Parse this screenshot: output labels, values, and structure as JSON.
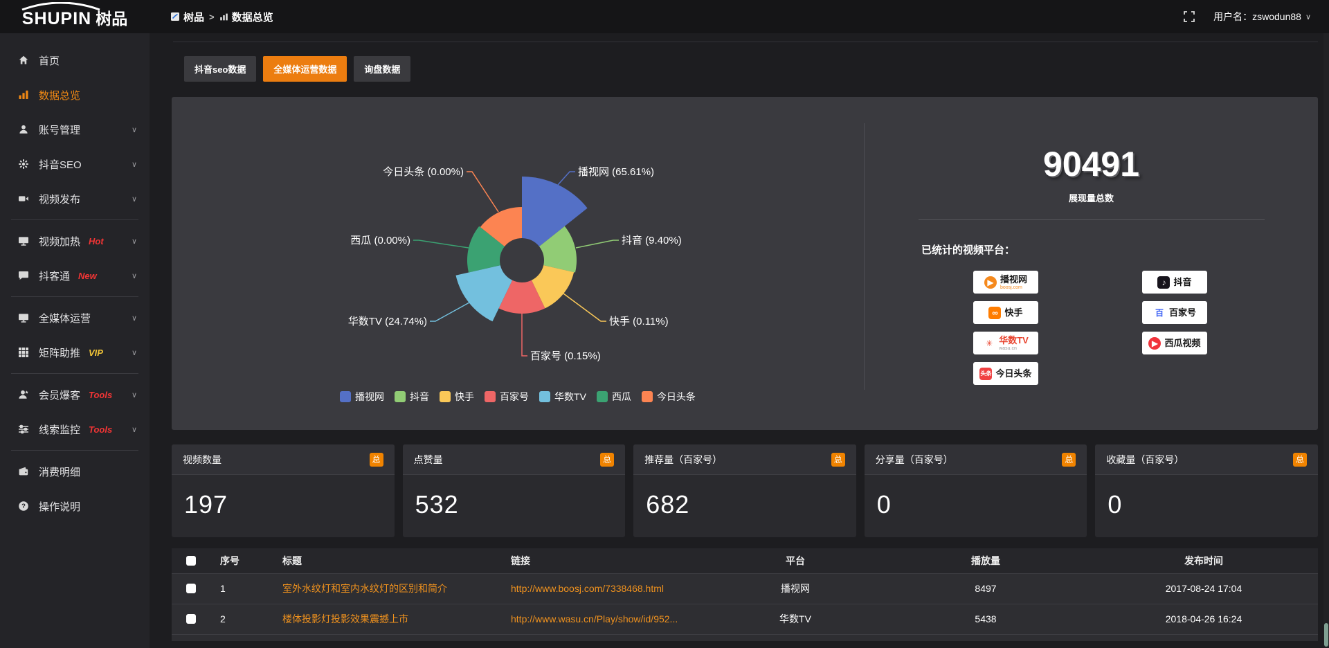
{
  "topbar": {
    "logo": {
      "latin": "SHUPIN",
      "cjk": "树品"
    },
    "breadcrumb": {
      "home": "树品",
      "sep": ">",
      "current": "数据总览"
    },
    "user_label": "用户名：zswodun88",
    "user_chevron": "∨"
  },
  "sidebar": {
    "items": [
      {
        "label": "首页",
        "icon": "home"
      },
      {
        "label": "数据总览",
        "icon": "chart-bar",
        "active": true
      },
      {
        "label": "账号管理",
        "icon": "user",
        "chevron": true
      },
      {
        "label": "抖音SEO",
        "icon": "gear",
        "chevron": true
      },
      {
        "label": "视频发布",
        "icon": "video",
        "chevron": true
      },
      {
        "divider": true
      },
      {
        "label": "视频加热",
        "icon": "monitor-play",
        "tag": "Hot",
        "tag_color": "#f23535",
        "chevron": true
      },
      {
        "label": "抖客通",
        "icon": "chat",
        "tag": "New",
        "tag_color": "#f23535",
        "chevron": true
      },
      {
        "divider": true
      },
      {
        "label": "全媒体运营",
        "icon": "monitor",
        "chevron": true
      },
      {
        "label": "矩阵助推",
        "icon": "grid",
        "tag": "VIP",
        "tag_color": "#f2c537",
        "chevron": true
      },
      {
        "divider": true
      },
      {
        "label": "会员爆客",
        "icon": "user-star",
        "tag": "Tools",
        "tag_color": "#f23535",
        "chevron": true
      },
      {
        "label": "线索监控",
        "icon": "sliders",
        "tag": "Tools",
        "tag_color": "#f23535",
        "chevron": true
      },
      {
        "divider": true
      },
      {
        "label": "消费明细",
        "icon": "wallet"
      },
      {
        "label": "操作说明",
        "icon": "question"
      }
    ]
  },
  "tabs": [
    {
      "label": "抖音seo数据",
      "active": false
    },
    {
      "label": "全媒体运营数据",
      "active": true
    },
    {
      "label": "询盘数据",
      "active": false
    }
  ],
  "chart_data": {
    "type": "pie",
    "subtype": "nightingale-rose",
    "title": "",
    "legend_position": "bottom",
    "label_format": "{name} ({percent}%)",
    "series": [
      {
        "name": "播视网",
        "percent": 65.61,
        "color": "#5470c6"
      },
      {
        "name": "抖音",
        "percent": 9.4,
        "color": "#91cc75"
      },
      {
        "name": "快手",
        "percent": 0.11,
        "color": "#fac858"
      },
      {
        "name": "百家号",
        "percent": 0.15,
        "color": "#ee6666"
      },
      {
        "name": "华数TV",
        "percent": 24.74,
        "color": "#73c0de"
      },
      {
        "name": "西瓜",
        "percent": 0.0,
        "color": "#3ba272"
      },
      {
        "name": "今日头条",
        "percent": 0.0,
        "color": "#fc8452"
      }
    ]
  },
  "summary": {
    "total_value": "90491",
    "total_label": "展现量总数",
    "platforms_label": "已统计的视频平台：",
    "platform_columns": [
      [
        {
          "label": "播视网",
          "sub": "boosj.com",
          "icon_text": "▶",
          "icon_bg": "#f5891d",
          "icon_color": "#ffffff",
          "round": true,
          "label_color": "#1a1a1a",
          "sub_color": "#f5891d"
        },
        {
          "label": "快手",
          "sub": "",
          "icon_text": "∞",
          "icon_bg": "#ff7d00",
          "icon_color": "#ffffff",
          "label_color": "#1a1a1a"
        },
        {
          "label": "华数TV",
          "sub": "wasu.cn",
          "icon_text": "✳",
          "icon_bg": "transparent",
          "icon_color": "#e8432e",
          "label_color": "#e8432e",
          "sub_color": "#9a9a9a"
        },
        {
          "label": "今日头条",
          "sub": "",
          "icon_text": "头条",
          "icon_bg": "#f04142",
          "icon_color": "#ffffff",
          "small": true,
          "label_color": "#1a1a1a"
        }
      ],
      [
        {
          "label": "抖音",
          "sub": "",
          "icon_text": "♪",
          "icon_bg": "#17141c",
          "icon_color": "#ffffff",
          "label_color": "#111111"
        },
        {
          "label": "百家号",
          "sub": "",
          "icon_text": "百",
          "icon_bg": "transparent",
          "icon_color": "#3e62f5",
          "label_color": "#1a1a1a"
        },
        {
          "label": "西瓜视频",
          "sub": "",
          "icon_text": "▶",
          "icon_bg": "#f1333b",
          "icon_color": "#ffffff",
          "round": true,
          "label_color": "#1a1a1a"
        }
      ]
    ]
  },
  "stat_cards": {
    "badge": "总",
    "items": [
      {
        "label": "视频数量",
        "value": "197"
      },
      {
        "label": "点赞量",
        "value": "532"
      },
      {
        "label": "推荐量（百家号）",
        "value": "682"
      },
      {
        "label": "分享量（百家号）",
        "value": "0"
      },
      {
        "label": "收藏量（百家号）",
        "value": "0"
      }
    ]
  },
  "table": {
    "columns": [
      "序号",
      "标题",
      "链接",
      "平台",
      "播放量",
      "发布时间"
    ],
    "rows": [
      {
        "seq": "1",
        "title": "室外水纹灯和室内水纹灯的区别和简介",
        "link": "http://www.boosj.com/7338468.html",
        "platform": "播视网",
        "plays": "8497",
        "time": "2017-08-24 17:04"
      },
      {
        "seq": "2",
        "title": "楼体投影灯投影效果震撼上市",
        "link": "http://www.wasu.cn/Play/show/id/952...",
        "platform": "华数TV",
        "plays": "5438",
        "time": "2018-04-26 16:24"
      }
    ]
  },
  "colors": {
    "accent": "#ec7d10",
    "badge_orange": "#f08300",
    "link_orange": "#f0921e"
  }
}
